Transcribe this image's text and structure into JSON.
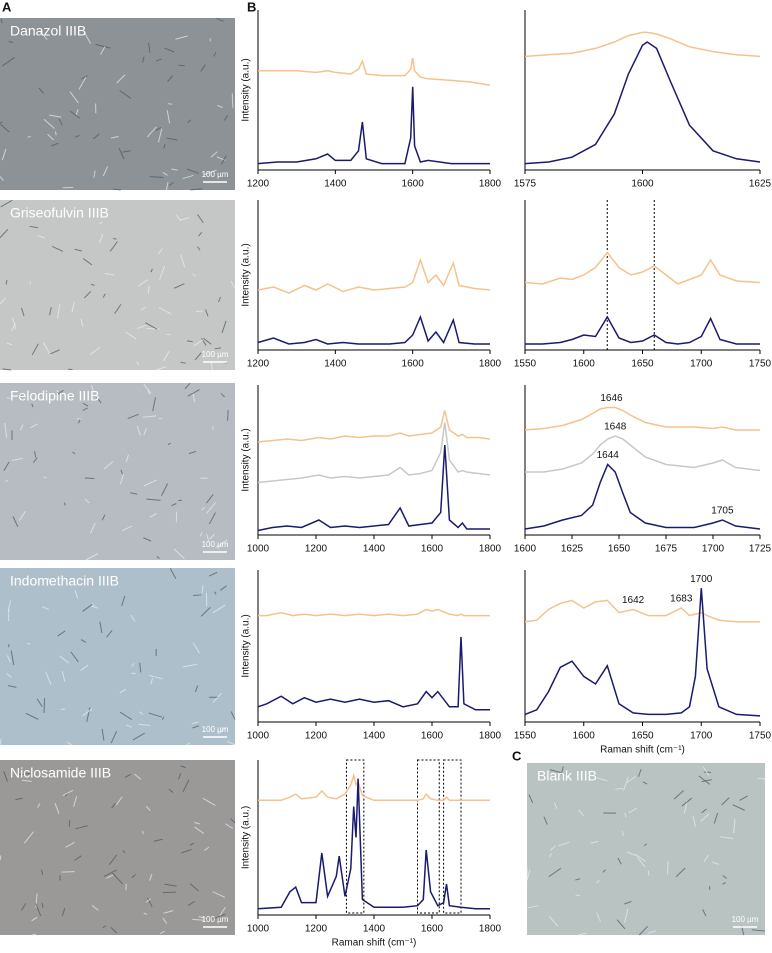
{
  "panels": {
    "a": "A",
    "b": "B",
    "c": "C"
  },
  "images": [
    {
      "label": "Danazol  IIIB",
      "scale": "100 µm"
    },
    {
      "label": "Griseofulvin IIIB",
      "scale": "100 µm"
    },
    {
      "label": "Felodipine IIIB",
      "scale": "100 µm"
    },
    {
      "label": "Indomethacin IIIB",
      "scale": "100 µm"
    },
    {
      "label": "Niclosamide IIIB",
      "scale": "100 µm"
    },
    {
      "label": "Blank IIIB",
      "scale": "100 µm"
    }
  ],
  "chart_data": [
    {
      "type": "line",
      "ylabel": "Intensity (a.u.)",
      "xlim": [
        1200,
        1800
      ],
      "xticks": [
        1200,
        1400,
        1600,
        1800
      ],
      "ylim": [
        0,
        1
      ],
      "x": [
        1200,
        1250,
        1300,
        1350,
        1380,
        1400,
        1440,
        1460,
        1470,
        1480,
        1520,
        1580,
        1595,
        1600,
        1605,
        1620,
        1640,
        1700,
        1750,
        1800
      ],
      "series": [
        {
          "color": "#f5c28c",
          "values": [
            0.62,
            0.62,
            0.62,
            0.61,
            0.62,
            0.61,
            0.6,
            0.63,
            0.68,
            0.6,
            0.59,
            0.59,
            0.63,
            0.7,
            0.62,
            0.58,
            0.57,
            0.56,
            0.55,
            0.53
          ]
        },
        {
          "color": "#1a1a6e",
          "values": [
            0.04,
            0.05,
            0.05,
            0.07,
            0.1,
            0.06,
            0.06,
            0.12,
            0.3,
            0.07,
            0.04,
            0.04,
            0.2,
            0.52,
            0.15,
            0.05,
            0.06,
            0.04,
            0.04,
            0.04
          ]
        }
      ]
    },
    {
      "type": "line",
      "xlim": [
        1575,
        1625
      ],
      "xticks": [
        1575,
        1600,
        1625
      ],
      "ylim": [
        0,
        1
      ],
      "x": [
        1575,
        1580,
        1585,
        1590,
        1594,
        1597,
        1600,
        1601,
        1603,
        1606,
        1610,
        1615,
        1620,
        1625
      ],
      "series": [
        {
          "color": "#f5c28c",
          "values": [
            0.71,
            0.72,
            0.73,
            0.76,
            0.8,
            0.84,
            0.86,
            0.86,
            0.85,
            0.82,
            0.77,
            0.74,
            0.72,
            0.71
          ]
        },
        {
          "color": "#1a1a6e",
          "values": [
            0.04,
            0.05,
            0.08,
            0.16,
            0.35,
            0.6,
            0.78,
            0.8,
            0.76,
            0.55,
            0.28,
            0.12,
            0.07,
            0.05
          ]
        }
      ]
    },
    {
      "type": "line",
      "ylabel": "Intensity (a.u.)",
      "xlim": [
        1200,
        1800
      ],
      "xticks": [
        1200,
        1400,
        1600,
        1800
      ],
      "ylim": [
        0,
        1
      ],
      "x": [
        1200,
        1240,
        1280,
        1320,
        1350,
        1380,
        1420,
        1460,
        1500,
        1540,
        1580,
        1600,
        1620,
        1640,
        1660,
        1680,
        1705,
        1720,
        1760,
        1800
      ],
      "series": [
        {
          "color": "#f5c28c",
          "values": [
            0.4,
            0.42,
            0.38,
            0.43,
            0.4,
            0.44,
            0.39,
            0.42,
            0.4,
            0.41,
            0.42,
            0.45,
            0.6,
            0.45,
            0.5,
            0.43,
            0.58,
            0.43,
            0.41,
            0.4
          ]
        },
        {
          "color": "#1a1a6e",
          "values": [
            0.05,
            0.08,
            0.04,
            0.05,
            0.07,
            0.04,
            0.05,
            0.04,
            0.04,
            0.04,
            0.05,
            0.1,
            0.22,
            0.06,
            0.12,
            0.05,
            0.2,
            0.05,
            0.04,
            0.04
          ]
        }
      ]
    },
    {
      "type": "line",
      "xlim": [
        1550,
        1750
      ],
      "xticks": [
        1550,
        1600,
        1650,
        1700,
        1750
      ],
      "ylim": [
        0,
        1
      ],
      "vlines": [
        1620,
        1660
      ],
      "x": [
        1550,
        1565,
        1580,
        1590,
        1600,
        1610,
        1620,
        1630,
        1640,
        1650,
        1660,
        1670,
        1680,
        1690,
        1700,
        1708,
        1716,
        1730,
        1750
      ],
      "series": [
        {
          "color": "#f5c28c",
          "values": [
            0.45,
            0.44,
            0.48,
            0.47,
            0.5,
            0.55,
            0.65,
            0.55,
            0.5,
            0.52,
            0.56,
            0.5,
            0.44,
            0.47,
            0.5,
            0.6,
            0.5,
            0.46,
            0.45
          ]
        },
        {
          "color": "#1a1a6e",
          "values": [
            0.04,
            0.04,
            0.05,
            0.07,
            0.1,
            0.09,
            0.22,
            0.08,
            0.05,
            0.06,
            0.1,
            0.05,
            0.04,
            0.05,
            0.09,
            0.21,
            0.07,
            0.04,
            0.04
          ]
        }
      ]
    },
    {
      "type": "line",
      "ylabel": "Intensity (a.u.)",
      "xlim": [
        1000,
        1800
      ],
      "xticks": [
        1000,
        1200,
        1400,
        1600,
        1800
      ],
      "ylim": [
        0,
        1
      ],
      "x": [
        1000,
        1050,
        1100,
        1150,
        1210,
        1250,
        1300,
        1350,
        1400,
        1450,
        1490,
        1520,
        1560,
        1600,
        1630,
        1644,
        1660,
        1690,
        1705,
        1720,
        1760,
        1800
      ],
      "series": [
        {
          "color": "#f5c28c",
          "values": [
            0.62,
            0.63,
            0.64,
            0.63,
            0.65,
            0.64,
            0.66,
            0.65,
            0.66,
            0.66,
            0.68,
            0.66,
            0.67,
            0.68,
            0.72,
            0.83,
            0.7,
            0.66,
            0.67,
            0.65,
            0.65,
            0.64
          ]
        },
        {
          "color": "#c8c8c8",
          "values": [
            0.35,
            0.36,
            0.37,
            0.38,
            0.4,
            0.38,
            0.39,
            0.38,
            0.39,
            0.4,
            0.45,
            0.4,
            0.41,
            0.43,
            0.55,
            0.75,
            0.5,
            0.42,
            0.43,
            0.42,
            0.41,
            0.4
          ]
        },
        {
          "color": "#1a1a6e",
          "values": [
            0.03,
            0.05,
            0.06,
            0.05,
            0.1,
            0.05,
            0.06,
            0.05,
            0.06,
            0.07,
            0.18,
            0.06,
            0.07,
            0.08,
            0.15,
            0.6,
            0.1,
            0.05,
            0.08,
            0.04,
            0.04,
            0.04
          ]
        }
      ]
    },
    {
      "type": "line",
      "xlim": [
        1600,
        1725
      ],
      "xticks": [
        1600,
        1625,
        1650,
        1675,
        1700,
        1725
      ],
      "ylim": [
        0,
        1
      ],
      "x": [
        1600,
        1610,
        1620,
        1630,
        1636,
        1640,
        1644,
        1648,
        1652,
        1656,
        1664,
        1675,
        1690,
        1700,
        1705,
        1712,
        1725
      ],
      "series": [
        {
          "color": "#f5c28c",
          "values": [
            0.7,
            0.71,
            0.73,
            0.77,
            0.81,
            0.84,
            0.85,
            0.85,
            0.83,
            0.8,
            0.75,
            0.72,
            0.72,
            0.71,
            0.72,
            0.7,
            0.7
          ],
          "peak_labels": [
            1646
          ]
        },
        {
          "color": "#c8c8c8",
          "values": [
            0.42,
            0.42,
            0.44,
            0.48,
            0.54,
            0.6,
            0.64,
            0.66,
            0.64,
            0.6,
            0.52,
            0.47,
            0.45,
            0.48,
            0.5,
            0.45,
            0.43
          ],
          "peak_labels": [
            1648
          ]
        },
        {
          "color": "#1a1a6e",
          "values": [
            0.04,
            0.06,
            0.1,
            0.13,
            0.2,
            0.35,
            0.47,
            0.42,
            0.28,
            0.15,
            0.08,
            0.05,
            0.05,
            0.08,
            0.1,
            0.06,
            0.04
          ],
          "peak_labels": [
            1644,
            1705
          ]
        }
      ]
    },
    {
      "type": "line",
      "ylabel": "Intensity (a.u.)",
      "xlim": [
        1000,
        1800
      ],
      "xticks": [
        1000,
        1200,
        1400,
        1600,
        1800
      ],
      "ylim": [
        0,
        1
      ],
      "x": [
        1000,
        1030,
        1080,
        1120,
        1160,
        1200,
        1250,
        1300,
        1350,
        1400,
        1450,
        1500,
        1550,
        1580,
        1600,
        1620,
        1660,
        1690,
        1700,
        1710,
        1750,
        1800
      ],
      "series": [
        {
          "color": "#f5c28c",
          "values": [
            0.7,
            0.7,
            0.72,
            0.7,
            0.71,
            0.7,
            0.71,
            0.7,
            0.71,
            0.7,
            0.71,
            0.7,
            0.71,
            0.74,
            0.73,
            0.74,
            0.71,
            0.7,
            0.71,
            0.7,
            0.7,
            0.7
          ]
        },
        {
          "color": "#1a1a6e",
          "values": [
            0.1,
            0.12,
            0.17,
            0.12,
            0.16,
            0.13,
            0.15,
            0.13,
            0.15,
            0.13,
            0.14,
            0.1,
            0.12,
            0.2,
            0.16,
            0.2,
            0.1,
            0.1,
            0.56,
            0.12,
            0.08,
            0.08
          ]
        }
      ]
    },
    {
      "type": "line",
      "xlabel": "Raman shift (cm⁻¹)",
      "xlim": [
        1550,
        1750
      ],
      "xticks": [
        1550,
        1600,
        1650,
        1700,
        1750
      ],
      "ylim": [
        0,
        1
      ],
      "x": [
        1550,
        1560,
        1570,
        1580,
        1590,
        1600,
        1610,
        1620,
        1630,
        1642,
        1655,
        1670,
        1683,
        1690,
        1695,
        1700,
        1705,
        1715,
        1730,
        1750
      ],
      "series": [
        {
          "color": "#f5c28c",
          "values": [
            0.66,
            0.67,
            0.74,
            0.78,
            0.8,
            0.75,
            0.79,
            0.8,
            0.72,
            0.74,
            0.7,
            0.7,
            0.75,
            0.7,
            0.71,
            0.72,
            0.7,
            0.67,
            0.66,
            0.66
          ],
          "peak_labels": [
            1642,
            1683
          ]
        },
        {
          "color": "#1a1a6e",
          "values": [
            0.05,
            0.08,
            0.2,
            0.36,
            0.4,
            0.3,
            0.25,
            0.37,
            0.12,
            0.06,
            0.05,
            0.05,
            0.06,
            0.1,
            0.3,
            0.88,
            0.35,
            0.1,
            0.05,
            0.04
          ],
          "peak_labels": [
            1700
          ]
        }
      ]
    },
    {
      "type": "line",
      "ylabel": "Intensity (a.u.)",
      "xlabel": "Raman shift (cm⁻¹)",
      "xlim": [
        1000,
        1800
      ],
      "xticks": [
        1000,
        1200,
        1400,
        1600,
        1800
      ],
      "ylim": [
        0,
        1
      ],
      "boxes": [
        [
          1305,
          1365
        ],
        [
          1550,
          1625
        ],
        [
          1640,
          1700
        ]
      ],
      "x": [
        1000,
        1080,
        1110,
        1130,
        1150,
        1200,
        1220,
        1240,
        1270,
        1280,
        1300,
        1320,
        1330,
        1338,
        1345,
        1360,
        1400,
        1500,
        1550,
        1570,
        1580,
        1595,
        1620,
        1640,
        1650,
        1660,
        1700,
        1750,
        1800
      ],
      "series": [
        {
          "color": "#f5c28c",
          "values": [
            0.74,
            0.74,
            0.76,
            0.78,
            0.75,
            0.76,
            0.8,
            0.76,
            0.75,
            0.76,
            0.78,
            0.84,
            0.9,
            0.84,
            0.86,
            0.77,
            0.74,
            0.74,
            0.74,
            0.75,
            0.78,
            0.75,
            0.74,
            0.74,
            0.76,
            0.74,
            0.74,
            0.74,
            0.74
          ]
        },
        {
          "color": "#1a1a6e",
          "values": [
            0.04,
            0.05,
            0.15,
            0.18,
            0.08,
            0.08,
            0.4,
            0.12,
            0.25,
            0.38,
            0.12,
            0.3,
            0.7,
            0.5,
            0.88,
            0.1,
            0.05,
            0.05,
            0.06,
            0.1,
            0.42,
            0.15,
            0.06,
            0.08,
            0.2,
            0.06,
            0.05,
            0.04,
            0.04
          ]
        }
      ]
    }
  ]
}
